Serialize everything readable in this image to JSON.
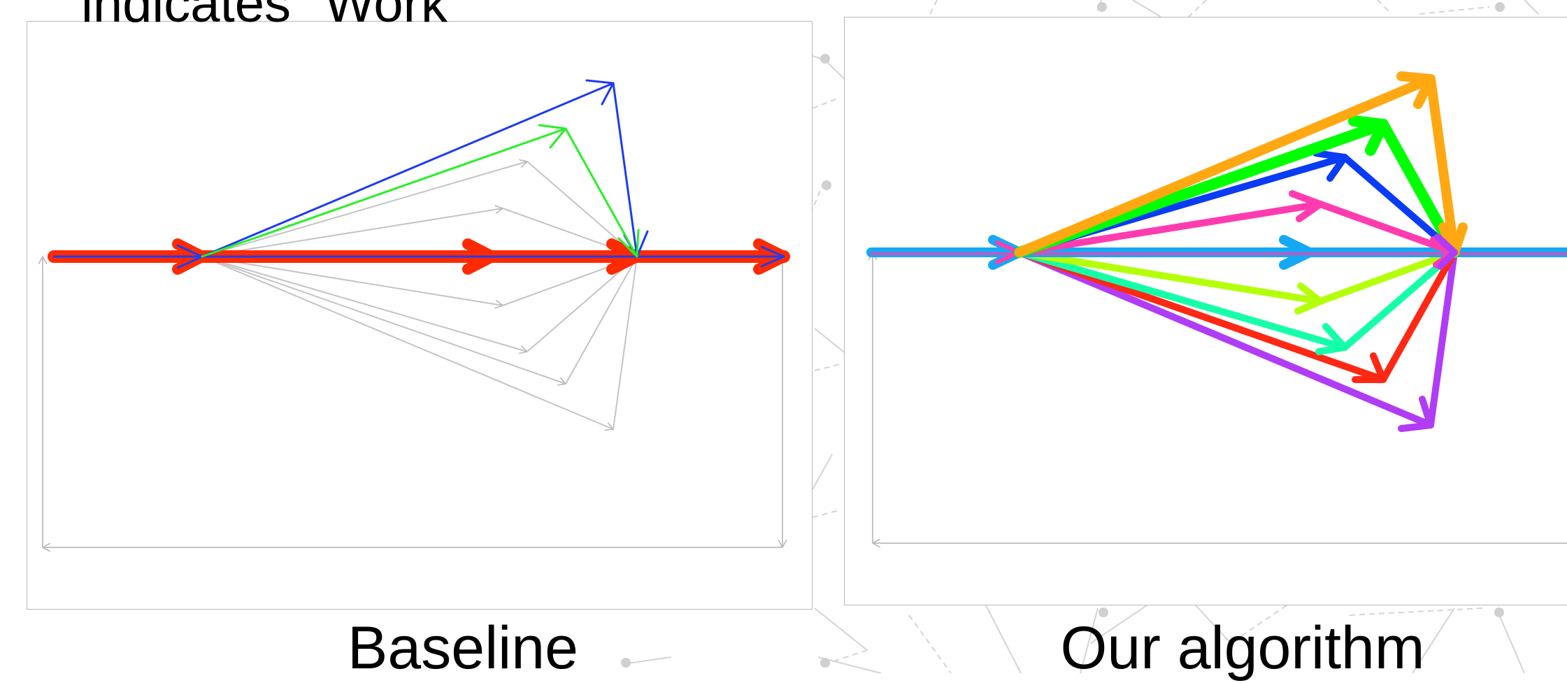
{
  "top_note": "indicates \"Work\"",
  "captions": {
    "baseline": "Baseline",
    "ours": "Our algorithm"
  },
  "colors": {
    "background_network": "#d4d4d4",
    "frame": "#b8b8b8",
    "baseline_grey_edge": "#c4c4c4",
    "baseline_main_path": "#ff2a00",
    "baseline_blue": "#1e3cf0",
    "baseline_green": "#28f028",
    "ours_fan": [
      "#ffa812",
      "#00ff00",
      "#0a3cf5",
      "#ff3caf",
      "#15a8f5",
      "#b4ff0a",
      "#14ffa8",
      "#ff2814",
      "#b03cf5"
    ]
  },
  "icons": [
    "arrow-head-icon"
  ]
}
